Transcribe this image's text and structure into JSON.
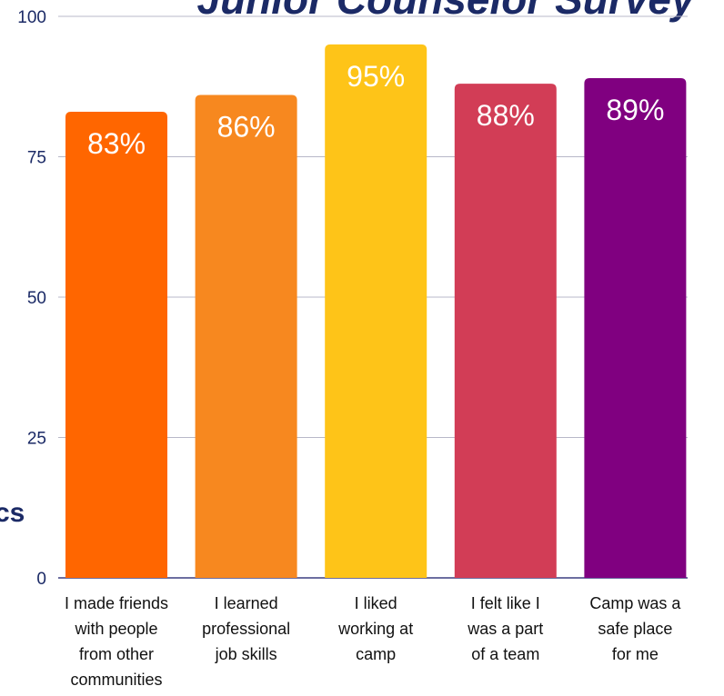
{
  "title": "Junior Counselor Survey",
  "side_text": "cs",
  "chart_data": {
    "type": "bar",
    "categories": [
      "I made friends\nwith people\nfrom other\ncommunities",
      "I learned\nprofessional\njob skills",
      "I liked\nworking at\ncamp",
      "I felt like I\nwas a part\nof a team",
      "Camp was a\nsafe place\nfor me"
    ],
    "values": [
      83,
      86,
      95,
      88,
      89
    ],
    "value_labels": [
      "83%",
      "86%",
      "95%",
      "88%",
      "89%"
    ],
    "colors": [
      "#ff6600",
      "#f7881f",
      "#fec418",
      "#d23d56",
      "#800080"
    ],
    "ylim": [
      0,
      100
    ],
    "yticks": [
      0,
      25,
      50,
      75,
      100
    ],
    "grid": true
  }
}
